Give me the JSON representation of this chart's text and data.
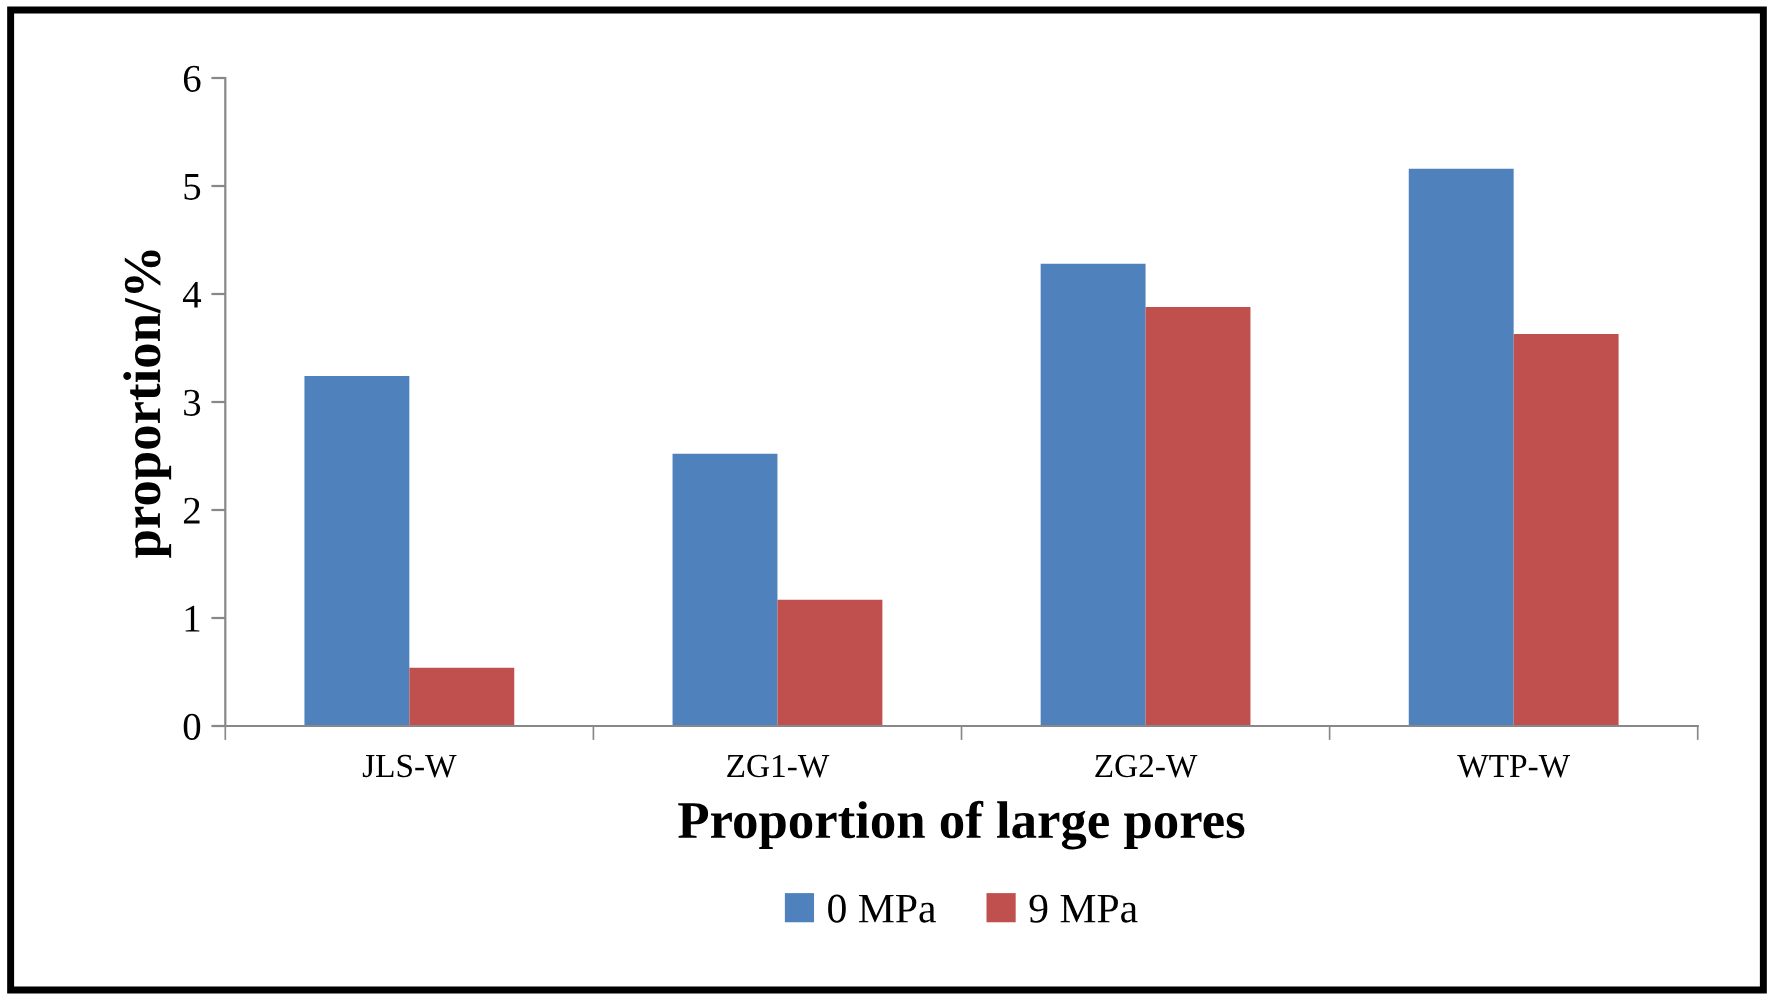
{
  "chart_data": {
    "type": "bar",
    "xlabel": "Proportion of large pores",
    "ylabel": "proportion/%",
    "categories": [
      "JLS-W",
      "ZG1-W",
      "ZG2-W",
      "WTP-W"
    ],
    "series": [
      {
        "name": "0 MPa",
        "color": "#4f81bd",
        "values": [
          3.24,
          2.52,
          4.28,
          5.16
        ]
      },
      {
        "name": "9 MPa",
        "color": "#c0504d",
        "values": [
          0.54,
          1.17,
          3.88,
          3.63
        ]
      }
    ],
    "ylim": [
      0,
      6
    ],
    "yticks": [
      0,
      1,
      2,
      3,
      4,
      5,
      6
    ],
    "grid": false,
    "legend": "bottom"
  }
}
